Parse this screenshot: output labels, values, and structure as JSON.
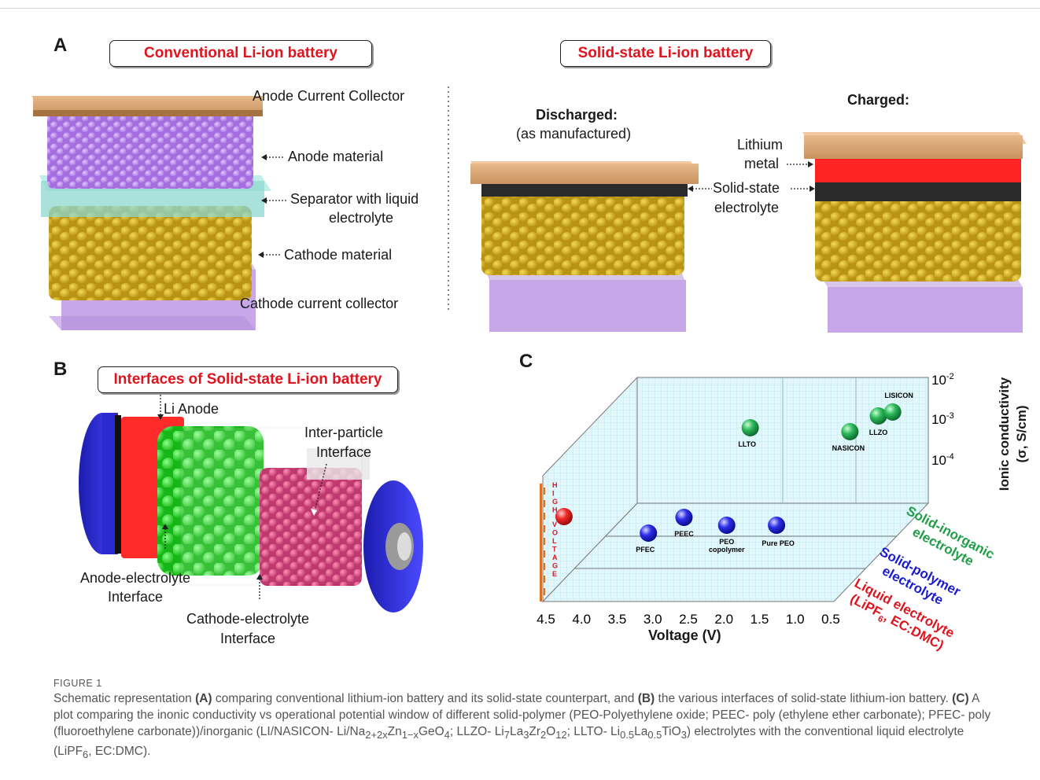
{
  "panelA": {
    "letter": "A",
    "conventional_title": "Conventional Li-ion battery",
    "solid_title": "Solid-state Li-ion battery",
    "labels": {
      "anode_cc": "Anode Current Collector",
      "anode_material": "Anode material",
      "separator_line1": "Separator with liquid",
      "separator_line2": "electrolyte",
      "cathode_material": "Cathode material",
      "cathode_cc": "Cathode current collector",
      "discharged": "Discharged:",
      "as_manufactured": "(as manufactured)",
      "charged": "Charged:",
      "lithium_line1": "Lithium",
      "lithium_line2": "metal",
      "sse_line1": "Solid-state",
      "sse_line2": "electrolyte"
    }
  },
  "panelB": {
    "letter": "B",
    "title": "Interfaces of Solid-state Li-ion battery",
    "li_anode": "Li  Anode",
    "inter_particle_line1": "Inter-particle",
    "inter_particle_line2": "Interface",
    "anode_el_line1": "Anode-electrolyte",
    "anode_el_line2": "Interface",
    "cathode_el_line1": "Cathode-electrolyte",
    "cathode_el_line2": "Interface"
  },
  "panelC": {
    "letter": "C",
    "y_axis_line1": "Ionic conductivity",
    "y_axis_line2": "(σ, S/cm)",
    "x_axis_title": "Voltage (V)",
    "x_ticks": [
      "4.5",
      "4.0",
      "3.5",
      "3.0",
      "2.5",
      "2.0",
      "1.5",
      "1.0",
      "0.5"
    ],
    "z_ticks": [
      {
        "base": "10",
        "exp": "-2"
      },
      {
        "base": "10",
        "exp": "-3"
      },
      {
        "base": "10",
        "exp": "-4"
      }
    ],
    "high_voltage": "HIGH VOLTAGE",
    "categories": {
      "inorganic_line1": "Solid-inorganic",
      "inorganic_line2": "electrolyte",
      "polymer_line1": "Solid-polymer",
      "polymer_line2": "electrolyte",
      "liquid_line1": "Liquid electrolyte",
      "liquid_line2a": "(LiPF",
      "liquid_line2sub": "6",
      "liquid_line2b": ", EC:DMC)"
    },
    "colors": {
      "inorganic": "#1f9e48",
      "polymer": "#1a1ad0",
      "liquid": "#e0141e"
    }
  },
  "chart_data": {
    "type": "scatter",
    "xlabel": "Voltage (V)",
    "zlabel": "Ionic conductivity (σ, S/cm)",
    "x_range": [
      4.5,
      0.5
    ],
    "z_ticks": [
      "10^-2",
      "10^-3",
      "10^-4"
    ],
    "series": [
      {
        "name": "Solid-inorganic electrolyte",
        "color": "#1f9e48",
        "points": [
          {
            "label": "LLTO",
            "voltage": 2.4
          },
          {
            "label": "NASICON",
            "voltage": 1.0
          },
          {
            "label": "LLZO",
            "voltage": 0.6
          },
          {
            "label": "LISICON",
            "voltage": 0.4
          }
        ]
      },
      {
        "name": "Solid-polymer electrolyte",
        "color": "#1a1ad0",
        "points": [
          {
            "label": "PFEC",
            "voltage": 3.3
          },
          {
            "label": "PEEC",
            "voltage": 2.8
          },
          {
            "label": "PEO copolymer",
            "voltage": 2.2
          },
          {
            "label": "Pure PEO",
            "voltage": 1.5
          }
        ]
      },
      {
        "name": "Liquid electrolyte (LiPF6, EC:DMC)",
        "color": "#e0141e",
        "points": [
          {
            "label": "",
            "voltage": 4.3
          }
        ]
      }
    ]
  },
  "caption": {
    "figure_label": "FIGURE 1",
    "text1": "Schematic representation ",
    "A": "(A)",
    "text2": " comparing conventional lithium-ion battery and its solid-state counterpart, and ",
    "B": "(B)",
    "text3": " the various interfaces of solid-state lithium-ion battery. ",
    "C": "(C)",
    "text4": " A plot comparing the inonic conductivity vs operational potential window of different solid-polymer (PEO-Polyethylene oxide; PEEC- poly (ethylene ether carbonate); PFEC- poly (fluoroethylene carbonate))/inorganic (LI/NASICON- Li/Na",
    "sub1": "2+2x",
    "text5": "Zn",
    "sub2": "1−x",
    "text6": "GeO",
    "sub3": "4",
    "text7": "; LLZO- Li",
    "sub4": "7",
    "text8": "La",
    "sub5": "3",
    "text9": "Zr",
    "sub6": "2",
    "text10": "O",
    "sub7": "12",
    "text11": "; LLTO- Li",
    "sub8": "0.5",
    "text12": "La",
    "sub9": "0.5",
    "text13": "TiO",
    "sub10": "3",
    "text14": ") electrolytes with the conventional liquid electrolyte (LiPF",
    "sub11": "6",
    "text15": ", EC:DMC)."
  }
}
